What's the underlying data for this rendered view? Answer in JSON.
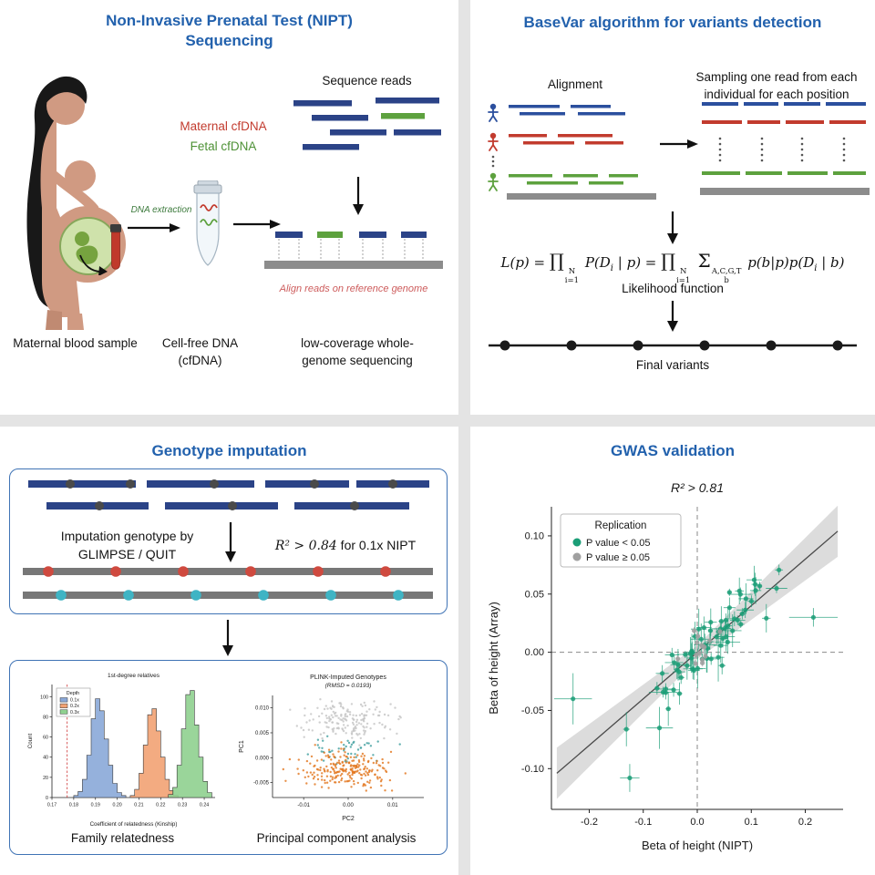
{
  "colors": {
    "title_blue": "#2261ad",
    "navy_read": "#2b4387",
    "green_read": "#5da13e",
    "red": "#c23b2e",
    "gray_reference": "#8c8c8c",
    "align_note_red": "#cd5c5c",
    "red_dot": "#cf4a3f",
    "cyan_dot": "#3fb4c4",
    "box_border_blue": "#3f73b5"
  },
  "nipt": {
    "title1": "Non-Invasive Prenatal Test (NIPT)",
    "title2": "Sequencing",
    "sequence_reads": "Sequence reads",
    "maternal_cfdna": "Maternal cfDNA",
    "fetal_cfdna": "Fetal cfDNA",
    "dna_extraction": "DNA extraction",
    "align_note": "Align reads on reference genome",
    "caption_blood": "Maternal blood sample",
    "caption_cfdna_1": "Cell-free DNA",
    "caption_cfdna_2": "(cfDNA)",
    "caption_seq_1": "low-coverage whole-",
    "caption_seq_2": "genome sequencing"
  },
  "basevar": {
    "title": "BaseVar algorithm for variants detection",
    "alignment_label": "Alignment",
    "sampling_label_1": "Sampling one read from each",
    "sampling_label_2": "individual for each position",
    "likelihood_label": "Likelihood function",
    "final_variants_label": "Final variants",
    "formula_segments": [
      {
        "t": "L(p) = "
      },
      {
        "t": "∏",
        "big": true
      },
      {
        "sup": "N",
        "sub": "i=1"
      },
      {
        "t": " P(D"
      },
      {
        "sub": "i"
      },
      {
        "t": " | p) = "
      },
      {
        "t": "∏",
        "big": true
      },
      {
        "sup": "N",
        "sub": "i=1"
      },
      {
        "t": " Σ",
        "big": true
      },
      {
        "sup": "A,C,G,T",
        "sub": "b"
      },
      {
        "t": " p(b|p)p(D"
      },
      {
        "sub": "i"
      },
      {
        "t": " | b)"
      }
    ]
  },
  "imputation": {
    "title": "Genotype imputation",
    "method_line1": "Imputation genotype by",
    "method_line2": "GLIMPSE / QUIT",
    "r2_math": "R² > 0.84",
    "r2_suffix": " for 0.1x NIPT",
    "family_caption": "Family relatedness",
    "pca_caption": "Principal component analysis"
  },
  "gwas": {
    "title": "GWAS validation"
  },
  "chart_data": [
    {
      "id": "kinship_histogram",
      "type": "bar",
      "title": "1st-degree relatives",
      "xlabel": "Coefficient of relatedness (Kinship)",
      "ylabel": "Count",
      "xlim": [
        0.17,
        0.245
      ],
      "ylim": [
        0,
        112
      ],
      "xticks": [
        0.17,
        0.18,
        0.19,
        0.2,
        0.21,
        0.22,
        0.23,
        0.24
      ],
      "yticks": [
        0,
        20,
        40,
        60,
        80,
        100
      ],
      "legend_title": "Depth",
      "legend_position": "upper-left",
      "vline": 0.177,
      "series": [
        {
          "name": "0.1x",
          "color": "#8aa8d8",
          "bin_start": 0.18,
          "bin_width": 0.002,
          "counts": [
            2,
            6,
            18,
            42,
            78,
            98,
            86,
            58,
            32,
            14,
            5,
            2
          ]
        },
        {
          "name": "0.2x",
          "color": "#f2a273",
          "bin_start": 0.206,
          "bin_width": 0.002,
          "counts": [
            2,
            8,
            24,
            52,
            82,
            88,
            66,
            40,
            18,
            7,
            2
          ]
        },
        {
          "name": "0.3x",
          "color": "#8fd08f",
          "bin_start": 0.2235,
          "bin_width": 0.002,
          "counts": [
            3,
            10,
            32,
            68,
            102,
            106,
            72,
            40,
            16,
            5
          ]
        }
      ]
    },
    {
      "id": "pca_scatter",
      "type": "scatter",
      "title": "PLINK-Imputed Genotypes",
      "subtitle": "(RMSD = 0.0193)",
      "xlabel": "PC2",
      "ylabel": "PC1",
      "xlim": [
        -0.017,
        0.017
      ],
      "ylim": [
        -0.008,
        0.0125
      ],
      "xticks": [
        -0.01,
        0,
        0.01
      ],
      "yticks": [
        0.01,
        0.005,
        0,
        -0.005
      ],
      "clusters": [
        {
          "name": "cluster-gray",
          "color": "#c4c4c4",
          "cx": 0.0,
          "cy": 0.0075,
          "sx": 0.0048,
          "sy": 0.0018,
          "n": 170
        },
        {
          "name": "cluster-teal",
          "color": "#3d9e9e",
          "cx": 0.0,
          "cy": 0.0018,
          "sx": 0.004,
          "sy": 0.0016,
          "n": 45
        },
        {
          "name": "cluster-orange",
          "color": "#e2751d",
          "cx": -0.0005,
          "cy": -0.0022,
          "sx": 0.005,
          "sy": 0.0018,
          "n": 230
        }
      ]
    },
    {
      "id": "gwas_scatter",
      "type": "scatter",
      "title": "R² > 0.81",
      "xlabel": "Beta of height (NIPT)",
      "ylabel": "Beta of height (Array)",
      "xlim": [
        -0.27,
        0.27
      ],
      "ylim": [
        -0.135,
        0.125
      ],
      "xticks": [
        -0.2,
        -0.1,
        0,
        0.1,
        0.2
      ],
      "yticks": [
        0.1,
        0.05,
        0,
        -0.05,
        -0.1
      ],
      "legend_title": "Replication",
      "legend_position": "upper-left",
      "zero_lines_dashed": true,
      "legend": [
        {
          "label": "P value < 0.05",
          "color": "#1b9e77"
        },
        {
          "label": "P value ≥ 0.05",
          "color": "#a0a0a0"
        }
      ],
      "regression": {
        "slope": 0.4,
        "intercept": 0.0,
        "band_mid": 0.006,
        "band_end": 0.022
      },
      "green_cluster": {
        "n": 70,
        "center_x": 0.02,
        "sx": 0.055,
        "slope": 0.42,
        "noise": 0.013
      },
      "gray_cluster": {
        "n": 14,
        "center_x": 0.01,
        "sx": 0.018,
        "slope": 0.3,
        "noise": 0.008
      },
      "outliers": [
        {
          "x": -0.23,
          "y": -0.04,
          "xe": 0.035,
          "ye": 0.022,
          "color": "#1b9e77"
        },
        {
          "x": 0.215,
          "y": 0.03,
          "xe": 0.045,
          "ye": 0.008,
          "color": "#1b9e77"
        },
        {
          "x": -0.125,
          "y": -0.108,
          "xe": 0.018,
          "ye": 0.012,
          "color": "#1b9e77"
        },
        {
          "x": -0.07,
          "y": -0.065,
          "xe": 0.025,
          "ye": 0.018,
          "color": "#1b9e77"
        }
      ]
    }
  ]
}
